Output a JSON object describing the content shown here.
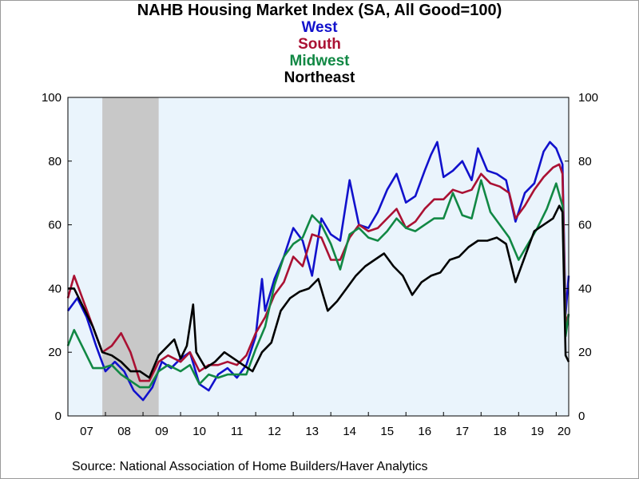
{
  "chart_data": {
    "type": "line",
    "title": "NAHB Housing Market Index (SA, All Good=100)",
    "source": "Source:  National Association of Home Builders/Haver Analytics",
    "xlabel": "",
    "ylabel": "",
    "ylim": [
      0,
      100
    ],
    "y_ticks": [
      0,
      20,
      40,
      60,
      80,
      100
    ],
    "y_tick_labels": [
      "0",
      "20",
      "40",
      "60",
      "80",
      "100"
    ],
    "y_axis_sides": "left and right",
    "x_range": [
      "2007-01",
      "2020-05"
    ],
    "x_tick_labels": [
      "07",
      "08",
      "09",
      "10",
      "11",
      "12",
      "13",
      "14",
      "15",
      "16",
      "17",
      "18",
      "19",
      "20"
    ],
    "frequency": "monthly",
    "plot_background": "#eaf4fc",
    "recession": {
      "start": "2007-12",
      "end": "2009-06",
      "color": "#c8c8c8"
    },
    "legend_position": "top-center",
    "grid": false,
    "series": [
      {
        "name": "West",
        "color": "#1111cc",
        "points": [
          [
            "2007-01",
            33
          ],
          [
            "2007-04",
            37
          ],
          [
            "2007-07",
            31
          ],
          [
            "2007-10",
            22
          ],
          [
            "2008-01",
            14
          ],
          [
            "2008-04",
            17
          ],
          [
            "2008-07",
            14
          ],
          [
            "2008-10",
            8
          ],
          [
            "2009-01",
            5
          ],
          [
            "2009-04",
            9
          ],
          [
            "2009-07",
            17
          ],
          [
            "2009-10",
            15
          ],
          [
            "2010-01",
            18
          ],
          [
            "2010-04",
            20
          ],
          [
            "2010-07",
            10
          ],
          [
            "2010-10",
            8
          ],
          [
            "2011-01",
            13
          ],
          [
            "2011-04",
            15
          ],
          [
            "2011-07",
            12
          ],
          [
            "2011-10",
            16
          ],
          [
            "2012-01",
            25
          ],
          [
            "2012-03",
            43
          ],
          [
            "2012-04",
            33
          ],
          [
            "2012-07",
            43
          ],
          [
            "2012-10",
            50
          ],
          [
            "2013-01",
            59
          ],
          [
            "2013-04",
            55
          ],
          [
            "2013-07",
            44
          ],
          [
            "2013-10",
            62
          ],
          [
            "2014-01",
            57
          ],
          [
            "2014-04",
            55
          ],
          [
            "2014-07",
            74
          ],
          [
            "2014-10",
            60
          ],
          [
            "2015-01",
            59
          ],
          [
            "2015-04",
            64
          ],
          [
            "2015-07",
            71
          ],
          [
            "2015-10",
            76
          ],
          [
            "2016-01",
            67
          ],
          [
            "2016-04",
            69
          ],
          [
            "2016-07",
            77
          ],
          [
            "2016-09",
            82
          ],
          [
            "2016-11",
            86
          ],
          [
            "2017-01",
            75
          ],
          [
            "2017-04",
            77
          ],
          [
            "2017-07",
            80
          ],
          [
            "2017-10",
            74
          ],
          [
            "2017-12",
            84
          ],
          [
            "2018-03",
            77
          ],
          [
            "2018-06",
            76
          ],
          [
            "2018-09",
            74
          ],
          [
            "2018-12",
            61
          ],
          [
            "2019-03",
            70
          ],
          [
            "2019-06",
            73
          ],
          [
            "2019-09",
            83
          ],
          [
            "2019-11",
            86
          ],
          [
            "2020-01",
            84
          ],
          [
            "2020-03",
            79
          ],
          [
            "2020-04",
            32
          ],
          [
            "2020-05",
            44
          ]
        ]
      },
      {
        "name": "South",
        "color": "#aa1133",
        "points": [
          [
            "2007-01",
            37
          ],
          [
            "2007-03",
            44
          ],
          [
            "2007-06",
            36
          ],
          [
            "2007-09",
            28
          ],
          [
            "2007-12",
            20
          ],
          [
            "2008-03",
            22
          ],
          [
            "2008-06",
            26
          ],
          [
            "2008-09",
            20
          ],
          [
            "2008-12",
            11
          ],
          [
            "2009-03",
            11
          ],
          [
            "2009-06",
            17
          ],
          [
            "2009-09",
            19
          ],
          [
            "2010-01",
            17
          ],
          [
            "2010-04",
            20
          ],
          [
            "2010-07",
            14
          ],
          [
            "2010-10",
            16
          ],
          [
            "2011-01",
            16
          ],
          [
            "2011-04",
            17
          ],
          [
            "2011-07",
            16
          ],
          [
            "2011-10",
            19
          ],
          [
            "2012-01",
            26
          ],
          [
            "2012-04",
            31
          ],
          [
            "2012-07",
            38
          ],
          [
            "2012-10",
            42
          ],
          [
            "2013-01",
            50
          ],
          [
            "2013-04",
            47
          ],
          [
            "2013-07",
            57
          ],
          [
            "2013-10",
            56
          ],
          [
            "2014-01",
            49
          ],
          [
            "2014-04",
            49
          ],
          [
            "2014-07",
            56
          ],
          [
            "2014-10",
            60
          ],
          [
            "2015-01",
            58
          ],
          [
            "2015-04",
            59
          ],
          [
            "2015-07",
            62
          ],
          [
            "2015-10",
            65
          ],
          [
            "2016-01",
            59
          ],
          [
            "2016-04",
            61
          ],
          [
            "2016-07",
            65
          ],
          [
            "2016-10",
            68
          ],
          [
            "2017-01",
            68
          ],
          [
            "2017-04",
            71
          ],
          [
            "2017-07",
            70
          ],
          [
            "2017-10",
            71
          ],
          [
            "2018-01",
            76
          ],
          [
            "2018-04",
            73
          ],
          [
            "2018-07",
            72
          ],
          [
            "2018-10",
            70
          ],
          [
            "2018-12",
            62
          ],
          [
            "2019-03",
            66
          ],
          [
            "2019-06",
            71
          ],
          [
            "2019-09",
            75
          ],
          [
            "2019-12",
            78
          ],
          [
            "2020-02",
            79
          ],
          [
            "2020-03",
            76
          ],
          [
            "2020-04",
            29
          ],
          [
            "2020-05",
            32
          ]
        ]
      },
      {
        "name": "Midwest",
        "color": "#118844",
        "points": [
          [
            "2007-01",
            22
          ],
          [
            "2007-03",
            27
          ],
          [
            "2007-06",
            21
          ],
          [
            "2007-09",
            15
          ],
          [
            "2007-12",
            15
          ],
          [
            "2008-03",
            16
          ],
          [
            "2008-06",
            13
          ],
          [
            "2008-09",
            11
          ],
          [
            "2008-12",
            9
          ],
          [
            "2009-03",
            9
          ],
          [
            "2009-06",
            14
          ],
          [
            "2009-09",
            16
          ],
          [
            "2010-01",
            14
          ],
          [
            "2010-04",
            16
          ],
          [
            "2010-07",
            10
          ],
          [
            "2010-10",
            13
          ],
          [
            "2011-01",
            12
          ],
          [
            "2011-04",
            13
          ],
          [
            "2011-07",
            13
          ],
          [
            "2011-10",
            13
          ],
          [
            "2012-01",
            21
          ],
          [
            "2012-04",
            28
          ],
          [
            "2012-07",
            41
          ],
          [
            "2012-10",
            50
          ],
          [
            "2013-01",
            54
          ],
          [
            "2013-04",
            56
          ],
          [
            "2013-07",
            63
          ],
          [
            "2013-10",
            60
          ],
          [
            "2014-01",
            54
          ],
          [
            "2014-04",
            46
          ],
          [
            "2014-07",
            57
          ],
          [
            "2014-10",
            59
          ],
          [
            "2015-01",
            56
          ],
          [
            "2015-04",
            55
          ],
          [
            "2015-07",
            58
          ],
          [
            "2015-10",
            62
          ],
          [
            "2016-01",
            59
          ],
          [
            "2016-04",
            58
          ],
          [
            "2016-07",
            60
          ],
          [
            "2016-10",
            62
          ],
          [
            "2017-01",
            62
          ],
          [
            "2017-04",
            70
          ],
          [
            "2017-07",
            63
          ],
          [
            "2017-10",
            62
          ],
          [
            "2018-01",
            74
          ],
          [
            "2018-04",
            64
          ],
          [
            "2018-07",
            60
          ],
          [
            "2018-10",
            56
          ],
          [
            "2019-01",
            49
          ],
          [
            "2019-04",
            54
          ],
          [
            "2019-07",
            59
          ],
          [
            "2019-10",
            65
          ],
          [
            "2020-01",
            73
          ],
          [
            "2020-03",
            66
          ],
          [
            "2020-04",
            25
          ],
          [
            "2020-05",
            32
          ]
        ]
      },
      {
        "name": "Northeast",
        "color": "#000000",
        "points": [
          [
            "2007-01",
            40
          ],
          [
            "2007-03",
            40
          ],
          [
            "2007-06",
            34
          ],
          [
            "2007-09",
            28
          ],
          [
            "2007-12",
            20
          ],
          [
            "2008-03",
            19
          ],
          [
            "2008-06",
            17
          ],
          [
            "2008-09",
            14
          ],
          [
            "2008-12",
            14
          ],
          [
            "2009-03",
            12
          ],
          [
            "2009-06",
            19
          ],
          [
            "2009-09",
            22
          ],
          [
            "2009-11",
            24
          ],
          [
            "2010-01",
            18
          ],
          [
            "2010-03",
            22
          ],
          [
            "2010-05",
            35
          ],
          [
            "2010-06",
            20
          ],
          [
            "2010-09",
            15
          ],
          [
            "2010-12",
            17
          ],
          [
            "2011-03",
            20
          ],
          [
            "2011-06",
            18
          ],
          [
            "2011-09",
            16
          ],
          [
            "2011-12",
            14
          ],
          [
            "2012-03",
            20
          ],
          [
            "2012-06",
            23
          ],
          [
            "2012-09",
            33
          ],
          [
            "2012-12",
            37
          ],
          [
            "2013-03",
            39
          ],
          [
            "2013-06",
            40
          ],
          [
            "2013-09",
            43
          ],
          [
            "2013-12",
            33
          ],
          [
            "2014-03",
            36
          ],
          [
            "2014-06",
            40
          ],
          [
            "2014-09",
            44
          ],
          [
            "2014-12",
            47
          ],
          [
            "2015-03",
            49
          ],
          [
            "2015-06",
            51
          ],
          [
            "2015-09",
            47
          ],
          [
            "2015-12",
            44
          ],
          [
            "2016-03",
            38
          ],
          [
            "2016-06",
            42
          ],
          [
            "2016-09",
            44
          ],
          [
            "2016-12",
            45
          ],
          [
            "2017-03",
            49
          ],
          [
            "2017-06",
            50
          ],
          [
            "2017-09",
            53
          ],
          [
            "2017-12",
            55
          ],
          [
            "2018-03",
            55
          ],
          [
            "2018-06",
            56
          ],
          [
            "2018-09",
            54
          ],
          [
            "2018-12",
            42
          ],
          [
            "2019-03",
            50
          ],
          [
            "2019-06",
            58
          ],
          [
            "2019-09",
            60
          ],
          [
            "2019-12",
            62
          ],
          [
            "2020-02",
            66
          ],
          [
            "2020-03",
            64
          ],
          [
            "2020-04",
            19
          ],
          [
            "2020-05",
            17
          ]
        ]
      }
    ]
  }
}
